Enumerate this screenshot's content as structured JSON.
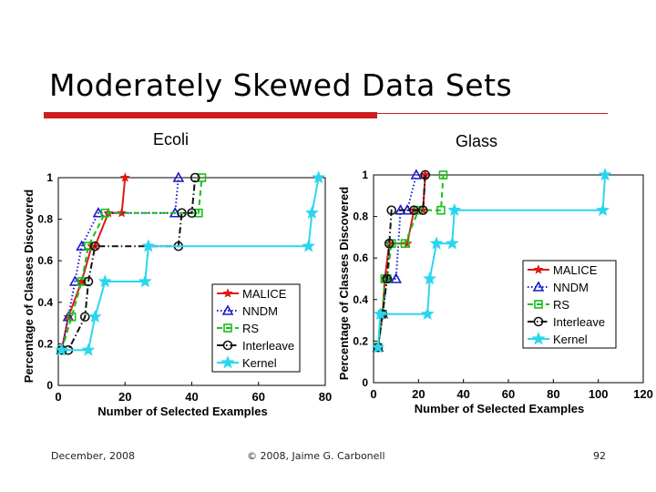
{
  "slide": {
    "title": "Moderately Skewed Data Sets",
    "footer_left": "December, 2008",
    "footer_center": "© 2008, Jaime G. Carbonell",
    "footer_right": "92"
  },
  "chart_data": [
    {
      "type": "line",
      "title": "Ecoli",
      "xlabel": "Number of Selected Examples",
      "ylabel": "Percentage of Classes Discovered",
      "xlim": [
        0,
        80
      ],
      "ylim": [
        0,
        1
      ],
      "xticks": [
        0,
        20,
        40,
        60,
        80
      ],
      "yticks": [
        0,
        0.2,
        0.4,
        0.6,
        0.8,
        1
      ],
      "legend": "lower-right",
      "series": [
        {
          "name": "MALICE",
          "color": "#e01818",
          "dash": "",
          "marker": "star",
          "x": [
            1,
            3,
            7,
            10,
            11,
            15,
            19,
            20
          ],
          "y": [
            0.17,
            0.33,
            0.5,
            0.67,
            0.67,
            0.83,
            0.83,
            1.0
          ]
        },
        {
          "name": "NNDM",
          "color": "#1a1acc",
          "dash": "1.5,2.5",
          "marker": "triangle",
          "x": [
            1,
            3,
            5,
            7,
            12,
            35,
            36
          ],
          "y": [
            0.17,
            0.33,
            0.5,
            0.67,
            0.83,
            0.83,
            1.0
          ]
        },
        {
          "name": "RS",
          "color": "#18c018",
          "dash": "6,4",
          "marker": "square",
          "x": [
            1,
            4,
            7,
            9,
            14,
            42,
            43
          ],
          "y": [
            0.17,
            0.33,
            0.5,
            0.67,
            0.83,
            0.83,
            1.0
          ]
        },
        {
          "name": "Interleave",
          "color": "#111111",
          "dash": "7,3,1.5,3",
          "marker": "circle",
          "x": [
            1,
            3,
            8,
            9,
            11,
            36,
            37,
            40,
            41
          ],
          "y": [
            0.17,
            0.17,
            0.33,
            0.5,
            0.67,
            0.67,
            0.83,
            0.83,
            1.0
          ]
        },
        {
          "name": "Kernel",
          "color": "#2ad6ee",
          "dash": "",
          "marker": "star",
          "x": [
            1,
            9,
            11,
            14,
            26,
            27,
            75,
            76,
            78
          ],
          "y": [
            0.17,
            0.17,
            0.33,
            0.5,
            0.5,
            0.67,
            0.67,
            0.83,
            1.0
          ]
        }
      ]
    },
    {
      "type": "line",
      "title": "Glass",
      "xlabel": "Number of Selected Examples",
      "ylabel": "Percentage of Classes Discovered",
      "xlim": [
        0,
        120
      ],
      "ylim": [
        0,
        1
      ],
      "xticks": [
        0,
        20,
        40,
        60,
        80,
        100,
        120
      ],
      "yticks": [
        0,
        0.2,
        0.4,
        0.6,
        0.8,
        1
      ],
      "legend": "right",
      "series": [
        {
          "name": "MALICE",
          "color": "#e01818",
          "dash": "",
          "marker": "star",
          "x": [
            2,
            4,
            5,
            7,
            15,
            18,
            22,
            23
          ],
          "y": [
            0.17,
            0.33,
            0.5,
            0.67,
            0.67,
            0.83,
            0.83,
            1.0
          ]
        },
        {
          "name": "NNDM",
          "color": "#1a1acc",
          "dash": "1.5,2.5",
          "marker": "triangle",
          "x": [
            2,
            4,
            6,
            10,
            12,
            15,
            19
          ],
          "y": [
            0.17,
            0.33,
            0.5,
            0.5,
            0.83,
            0.83,
            1.0
          ]
        },
        {
          "name": "RS",
          "color": "#18c018",
          "dash": "6,4",
          "marker": "square",
          "x": [
            2,
            4,
            5,
            6,
            8,
            14,
            20,
            30,
            31
          ],
          "y": [
            0.17,
            0.33,
            0.5,
            0.5,
            0.67,
            0.67,
            0.83,
            0.83,
            1.0
          ]
        },
        {
          "name": "Interleave",
          "color": "#111111",
          "dash": "7,3,1.5,3",
          "marker": "circle",
          "x": [
            2,
            4,
            6,
            7,
            8,
            18,
            22,
            23
          ],
          "y": [
            0.17,
            0.33,
            0.5,
            0.67,
            0.83,
            0.83,
            0.83,
            1.0
          ]
        },
        {
          "name": "Kernel",
          "color": "#2ad6ee",
          "dash": "",
          "marker": "star",
          "x": [
            2,
            3,
            24,
            25,
            28,
            35,
            36,
            102,
            103
          ],
          "y": [
            0.17,
            0.33,
            0.33,
            0.5,
            0.67,
            0.67,
            0.83,
            0.83,
            1.0
          ]
        }
      ]
    }
  ]
}
